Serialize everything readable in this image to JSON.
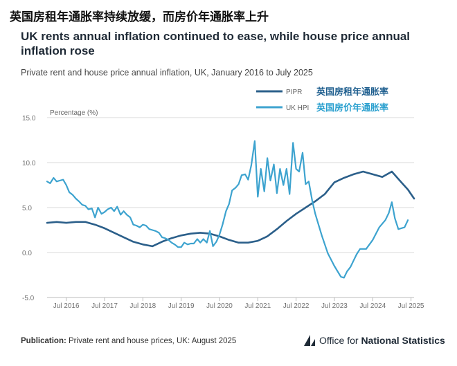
{
  "header": {
    "cn_title": "英国房租年通胀率持续放缓，而房价年通胀率上升",
    "en_title": "UK rents annual inflation continued to ease, while house price annual inflation rose",
    "subtitle": "Private rent and house price annual inflation, UK, January 2016 to July 2025"
  },
  "footer": {
    "publication_label": "Publication:",
    "publication_text": "Private rent and house prices, UK: August 2025",
    "logo_text_regular": "Office for ",
    "logo_text_bold": "National Statistics",
    "logo_icon": "ons-logo-icon"
  },
  "colors": {
    "pipr": "#2b5f8a",
    "hpi": "#3da3cf",
    "grid": "#d9d9d9",
    "axis": "#bbbbbb",
    "cn_pipr": "#1f5f8f",
    "cn_hpi": "#2aa0cf"
  },
  "chart_data": {
    "type": "line",
    "title": "UK rents annual inflation continued to ease, while house price annual inflation rose",
    "subtitle": "Private rent and house price annual inflation, UK, January 2016 to July 2025",
    "ylabel": "Percentage (%)",
    "xlabel": "",
    "ylim": [
      -5,
      15
    ],
    "yticks": [
      "15.0",
      "10.0",
      "5.0",
      "0.0",
      "-5.0"
    ],
    "ytick_values": [
      15,
      10,
      5,
      0,
      -5
    ],
    "xticks": [
      "Jul 2016",
      "Jul 2017",
      "Jul 2018",
      "Jul 2019",
      "Jul 2020",
      "Jul 2021",
      "Jul 2022",
      "Jul 2023",
      "Jul 2024",
      "Jul 2025"
    ],
    "xtick_values": [
      2016.5,
      2017.5,
      2018.5,
      2019.5,
      2020.5,
      2021.5,
      2022.5,
      2023.5,
      2024.5,
      2025.5
    ],
    "xlim": [
      2016.0,
      2025.58
    ],
    "grid": true,
    "legend_position": "top-right",
    "series": [
      {
        "name": "PIPR",
        "label_cn": "英国房租年通胀率",
        "points": [
          [
            2016.0,
            3.3
          ],
          [
            2016.25,
            3.4
          ],
          [
            2016.5,
            3.3
          ],
          [
            2016.75,
            3.4
          ],
          [
            2017.0,
            3.4
          ],
          [
            2017.25,
            3.1
          ],
          [
            2017.5,
            2.7
          ],
          [
            2017.75,
            2.2
          ],
          [
            2018.0,
            1.7
          ],
          [
            2018.25,
            1.2
          ],
          [
            2018.5,
            0.9
          ],
          [
            2018.75,
            0.7
          ],
          [
            2019.0,
            1.2
          ],
          [
            2019.25,
            1.6
          ],
          [
            2019.5,
            1.9
          ],
          [
            2019.75,
            2.1
          ],
          [
            2020.0,
            2.2
          ],
          [
            2020.25,
            2.1
          ],
          [
            2020.5,
            1.8
          ],
          [
            2020.75,
            1.4
          ],
          [
            2021.0,
            1.1
          ],
          [
            2021.25,
            1.1
          ],
          [
            2021.5,
            1.3
          ],
          [
            2021.75,
            1.8
          ],
          [
            2022.0,
            2.6
          ],
          [
            2022.25,
            3.5
          ],
          [
            2022.5,
            4.3
          ],
          [
            2022.75,
            5.0
          ],
          [
            2023.0,
            5.7
          ],
          [
            2023.25,
            6.5
          ],
          [
            2023.5,
            7.8
          ],
          [
            2023.75,
            8.3
          ],
          [
            2024.0,
            8.7
          ],
          [
            2024.25,
            9.0
          ],
          [
            2024.5,
            8.7
          ],
          [
            2024.75,
            8.4
          ],
          [
            2025.0,
            9.0
          ],
          [
            2025.25,
            7.8
          ],
          [
            2025.42,
            7.0
          ],
          [
            2025.58,
            6.0
          ]
        ]
      },
      {
        "name": "UK HPI",
        "label_cn": "英国房价年通胀率",
        "points": [
          [
            2016.0,
            7.9
          ],
          [
            2016.08,
            7.7
          ],
          [
            2016.17,
            8.3
          ],
          [
            2016.25,
            7.9
          ],
          [
            2016.33,
            8.0
          ],
          [
            2016.42,
            8.1
          ],
          [
            2016.5,
            7.5
          ],
          [
            2016.58,
            6.7
          ],
          [
            2016.67,
            6.4
          ],
          [
            2016.75,
            6.0
          ],
          [
            2016.83,
            5.7
          ],
          [
            2016.92,
            5.3
          ],
          [
            2017.0,
            5.2
          ],
          [
            2017.08,
            4.8
          ],
          [
            2017.17,
            4.9
          ],
          [
            2017.25,
            3.9
          ],
          [
            2017.33,
            5.0
          ],
          [
            2017.42,
            4.3
          ],
          [
            2017.5,
            4.5
          ],
          [
            2017.58,
            4.8
          ],
          [
            2017.67,
            5.0
          ],
          [
            2017.75,
            4.6
          ],
          [
            2017.83,
            5.1
          ],
          [
            2017.92,
            4.2
          ],
          [
            2018.0,
            4.6
          ],
          [
            2018.08,
            4.2
          ],
          [
            2018.17,
            3.9
          ],
          [
            2018.25,
            3.1
          ],
          [
            2018.33,
            3.0
          ],
          [
            2018.42,
            2.8
          ],
          [
            2018.5,
            3.1
          ],
          [
            2018.58,
            3.0
          ],
          [
            2018.67,
            2.6
          ],
          [
            2018.75,
            2.5
          ],
          [
            2018.83,
            2.4
          ],
          [
            2018.92,
            2.2
          ],
          [
            2019.0,
            1.7
          ],
          [
            2019.08,
            1.6
          ],
          [
            2019.17,
            1.4
          ],
          [
            2019.25,
            1.1
          ],
          [
            2019.33,
            0.9
          ],
          [
            2019.42,
            0.6
          ],
          [
            2019.5,
            0.6
          ],
          [
            2019.58,
            1.1
          ],
          [
            2019.67,
            0.9
          ],
          [
            2019.75,
            1.0
          ],
          [
            2019.83,
            1.0
          ],
          [
            2019.92,
            1.5
          ],
          [
            2020.0,
            1.1
          ],
          [
            2020.08,
            1.5
          ],
          [
            2020.17,
            1.1
          ],
          [
            2020.25,
            2.4
          ],
          [
            2020.33,
            0.7
          ],
          [
            2020.42,
            1.2
          ],
          [
            2020.5,
            2.0
          ],
          [
            2020.58,
            3.1
          ],
          [
            2020.67,
            4.6
          ],
          [
            2020.75,
            5.4
          ],
          [
            2020.83,
            6.9
          ],
          [
            2020.92,
            7.2
          ],
          [
            2021.0,
            7.6
          ],
          [
            2021.08,
            8.6
          ],
          [
            2021.17,
            8.7
          ],
          [
            2021.25,
            8.1
          ],
          [
            2021.33,
            9.7
          ],
          [
            2021.42,
            12.4
          ],
          [
            2021.5,
            6.2
          ],
          [
            2021.58,
            9.3
          ],
          [
            2021.67,
            6.8
          ],
          [
            2021.75,
            10.5
          ],
          [
            2021.83,
            8.0
          ],
          [
            2021.92,
            9.8
          ],
          [
            2022.0,
            6.6
          ],
          [
            2022.08,
            9.3
          ],
          [
            2022.17,
            7.5
          ],
          [
            2022.25,
            9.3
          ],
          [
            2022.33,
            6.5
          ],
          [
            2022.42,
            12.2
          ],
          [
            2022.5,
            9.3
          ],
          [
            2022.58,
            9.0
          ],
          [
            2022.67,
            11.1
          ],
          [
            2022.75,
            7.6
          ],
          [
            2022.83,
            7.9
          ],
          [
            2022.92,
            5.8
          ],
          [
            2023.0,
            4.3
          ],
          [
            2023.17,
            1.9
          ],
          [
            2023.33,
            -0.1
          ],
          [
            2023.5,
            -1.5
          ],
          [
            2023.67,
            -2.7
          ],
          [
            2023.75,
            -2.8
          ],
          [
            2023.83,
            -2.1
          ],
          [
            2023.92,
            -1.6
          ],
          [
            2024.0,
            -0.9
          ],
          [
            2024.08,
            -0.2
          ],
          [
            2024.17,
            0.4
          ],
          [
            2024.33,
            0.4
          ],
          [
            2024.5,
            1.4
          ],
          [
            2024.67,
            2.8
          ],
          [
            2024.83,
            3.6
          ],
          [
            2024.92,
            4.4
          ],
          [
            2025.0,
            5.6
          ],
          [
            2025.08,
            3.8
          ],
          [
            2025.17,
            2.6
          ],
          [
            2025.33,
            2.8
          ],
          [
            2025.42,
            3.6
          ]
        ]
      }
    ]
  }
}
